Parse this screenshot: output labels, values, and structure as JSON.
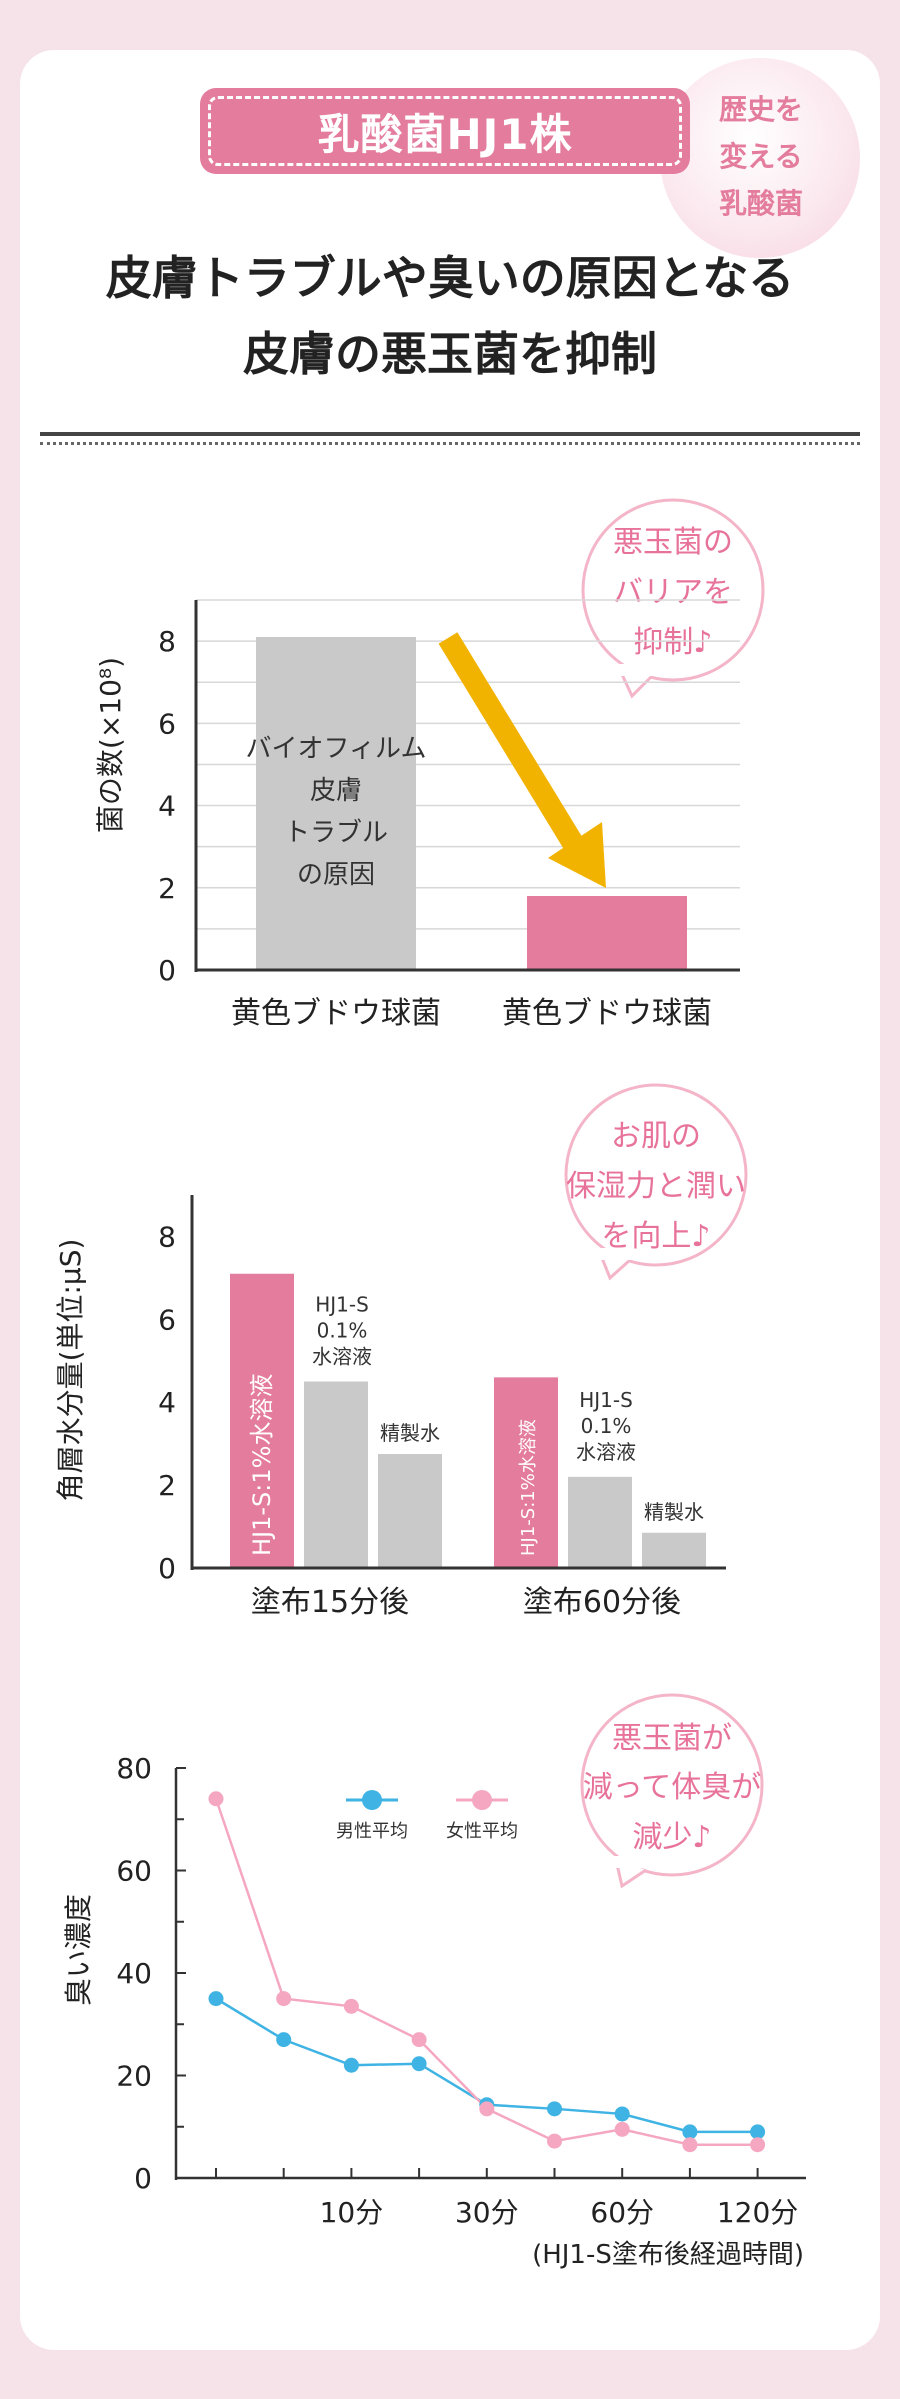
{
  "header": {
    "badge_label": "乳酸菌HJ1株",
    "circle_tag": [
      "歴史を",
      "変える",
      "乳酸菌"
    ],
    "headline": [
      "皮膚トラブルや臭いの原因となる",
      "皮膚の悪玉菌を抑制"
    ]
  },
  "colors": {
    "pink": "#e47c9e",
    "gray": "#c9c9c9",
    "arrow": "#f2b300",
    "blue": "#3fb3e3",
    "light_pink": "#f5a7c1"
  },
  "chart_data": [
    {
      "type": "bar",
      "ylabel": "菌の数(×10⁸)",
      "ylim": [
        0,
        9
      ],
      "yticks": [
        0,
        2,
        4,
        6,
        8
      ],
      "categories": [
        "黄色ブドウ球菌",
        "黄色ブドウ球菌"
      ],
      "values": [
        8.1,
        1.8
      ],
      "bar_colors": [
        "#c9c9c9",
        "#e47c9e"
      ],
      "bar_text": [
        "バイオフィルム",
        "皮膚",
        "トラブル",
        "の原因"
      ],
      "bubble": [
        "悪玉菌の",
        "バリアを",
        "抑制♪"
      ]
    },
    {
      "type": "bar",
      "ylabel": "角層水分量(単位:μS)",
      "ylim": [
        0,
        9
      ],
      "yticks": [
        0,
        2,
        4,
        6,
        8
      ],
      "categories": [
        "塗布15分後",
        "塗布60分後"
      ],
      "series": [
        {
          "name": "HJ1-S:1%水溶液",
          "values": [
            7.1,
            4.6
          ],
          "color": "#e47c9e"
        },
        {
          "name": "HJ1-S 0.1% 水溶液",
          "label_lines": [
            "HJ1-S",
            "0.1%",
            "水溶液"
          ],
          "values": [
            4.5,
            2.2
          ],
          "color": "#c9c9c9"
        },
        {
          "name": "精製水",
          "values": [
            2.75,
            0.85
          ],
          "color": "#c9c9c9"
        }
      ],
      "bubble": [
        "お肌の",
        "保湿力と潤い",
        "を向上♪"
      ]
    },
    {
      "type": "line",
      "ylabel": "臭い濃度",
      "xlabel": "(HJ1-S塗布後経過時間)",
      "ylim": [
        0,
        80
      ],
      "yticks": [
        0,
        20,
        40,
        60,
        80
      ],
      "x": [
        0,
        1,
        2,
        3,
        4,
        5,
        6,
        7,
        8
      ],
      "x_tick_labels": [
        "",
        "",
        "10分",
        "",
        "30分",
        "",
        "60分",
        "",
        "120分"
      ],
      "series": [
        {
          "name": "男性平均",
          "values": [
            35,
            27,
            22,
            22.3,
            14.3,
            13.5,
            12.5,
            9,
            9
          ],
          "color": "#3fb3e3"
        },
        {
          "name": "女性平均",
          "values": [
            74,
            35,
            33.5,
            27,
            13.5,
            7.2,
            9.5,
            6.5,
            6.5
          ],
          "color": "#f5a7c1"
        }
      ],
      "bubble": [
        "悪玉菌が",
        "減って体臭が",
        "減少♪"
      ]
    }
  ]
}
